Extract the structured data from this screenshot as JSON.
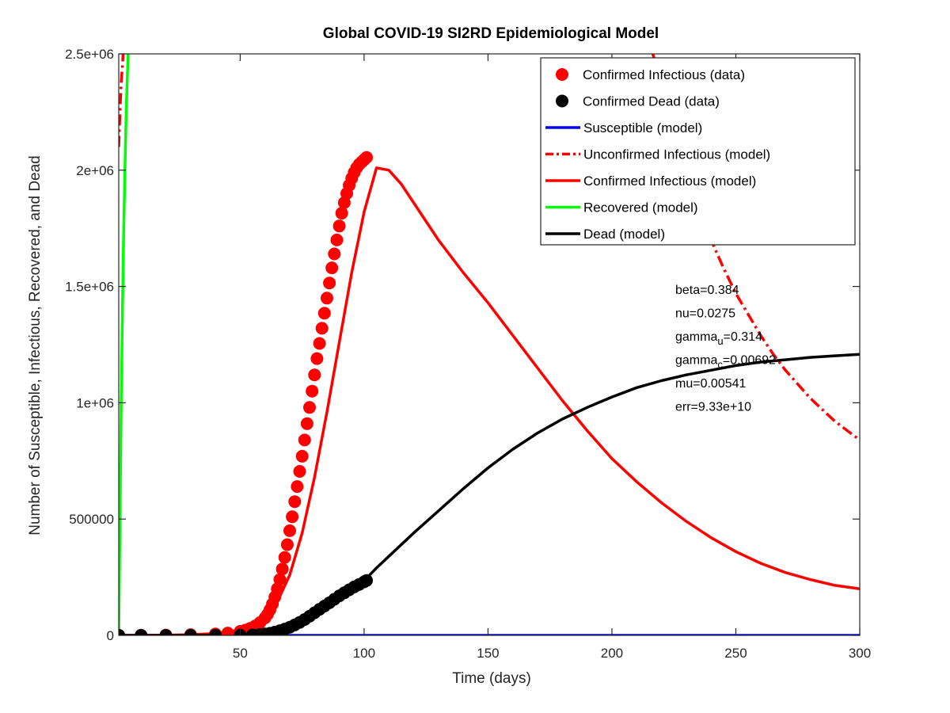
{
  "chart_data": {
    "type": "line",
    "title": "Global COVID-19 SI2RD Epidemiological Model",
    "xlabel": "Time (days)",
    "ylabel": "Number of Susceptible, Infectious, Recovered, and Dead",
    "xlim": [
      1,
      300
    ],
    "ylim": [
      0,
      2500000
    ],
    "x_ticks": [
      50,
      100,
      150,
      200,
      250,
      300
    ],
    "x_tick_labels": [
      "50",
      "100",
      "150",
      "200",
      "250",
      "300"
    ],
    "y_ticks": [
      0,
      500000,
      1000000,
      1500000,
      2000000,
      2500000
    ],
    "y_tick_labels": [
      "0",
      "500000",
      "1e+06",
      "1.5e+06",
      "2e+06",
      "2.5e+06"
    ],
    "grid": false,
    "legend_position": "top-right",
    "colors": {
      "red": "#ff0000",
      "black": "#000000",
      "blue": "#0000ff",
      "green": "#00ff00"
    },
    "legend": [
      {
        "label": "Confirmed Infectious (data)",
        "color": "#ff0000",
        "style": "marker"
      },
      {
        "label": "Confirmed Dead (data)",
        "color": "#000000",
        "style": "marker"
      },
      {
        "label": "Susceptible (model)",
        "color": "#0000ff",
        "style": "solid"
      },
      {
        "label": "Unconfirmed Infectious (model)",
        "color": "#ff0000",
        "style": "dashdot"
      },
      {
        "label": "Confirmed Infectious (model)",
        "color": "#ff0000",
        "style": "solid"
      },
      {
        "label": "Recovered (model)",
        "color": "#00ff00",
        "style": "solid"
      },
      {
        "label": "Dead (model)",
        "color": "#000000",
        "style": "solid"
      }
    ],
    "series": [
      {
        "name": "Confirmed Infectious (data)",
        "kind": "marker",
        "color": "#ff0000",
        "x": [
          1,
          10,
          20,
          30,
          40,
          45,
          50,
          52,
          54,
          56,
          58,
          60,
          61,
          62,
          63,
          64,
          65,
          66,
          67,
          68,
          69,
          70,
          71,
          72,
          73,
          74,
          75,
          76,
          77,
          78,
          79,
          80,
          81,
          82,
          83,
          84,
          85,
          86,
          87,
          88,
          89,
          90,
          91,
          92,
          93,
          94,
          95,
          96,
          97,
          98,
          99,
          100,
          101
        ],
        "y": [
          600,
          800,
          1500,
          3000,
          6000,
          10000,
          17000,
          22000,
          30000,
          40000,
          55000,
          75000,
          90000,
          110000,
          135000,
          165000,
          200000,
          240000,
          285000,
          335000,
          390000,
          450000,
          510000,
          575000,
          640000,
          705000,
          770000,
          840000,
          910000,
          980000,
          1050000,
          1120000,
          1190000,
          1255000,
          1320000,
          1385000,
          1450000,
          1515000,
          1580000,
          1640000,
          1700000,
          1760000,
          1815000,
          1860000,
          1900000,
          1935000,
          1965000,
          1990000,
          2010000,
          2025000,
          2035000,
          2045000,
          2055000
        ]
      },
      {
        "name": "Confirmed Dead (data)",
        "kind": "marker",
        "color": "#000000",
        "x": [
          1,
          10,
          20,
          30,
          40,
          50,
          55,
          58,
          60,
          62,
          64,
          66,
          68,
          70,
          72,
          74,
          76,
          78,
          80,
          82,
          84,
          86,
          88,
          90,
          92,
          94,
          96,
          98,
          100,
          101
        ],
        "y": [
          0,
          0,
          0,
          100,
          200,
          1000,
          2000,
          4000,
          6000,
          9000,
          14000,
          20000,
          27000,
          35000,
          45000,
          56000,
          68000,
          82000,
          97000,
          112000,
          126000,
          140000,
          155000,
          170000,
          183000,
          196000,
          208000,
          219000,
          230000,
          236000
        ]
      },
      {
        "name": "Susceptible (model)",
        "kind": "line",
        "style": "solid",
        "color": "#0000ff",
        "x": [
          1,
          300
        ],
        "y": [
          0,
          0
        ]
      },
      {
        "name": "Unconfirmed Infectious (model)",
        "kind": "line",
        "style": "dashdot",
        "color": "#ff0000",
        "x": [
          1,
          1.5,
          2,
          2.5,
          3,
          215,
          220,
          225,
          230,
          235,
          240,
          245,
          250,
          255,
          260,
          265,
          270,
          275,
          280,
          285,
          290,
          295,
          300
        ],
        "y": [
          2100000,
          2250000,
          2380000,
          2450000,
          2550000,
          2550000,
          2380000,
          2180000,
          2000000,
          1840000,
          1700000,
          1580000,
          1470000,
          1380000,
          1290000,
          1210000,
          1140000,
          1080000,
          1020000,
          970000,
          920000,
          880000,
          840000
        ]
      },
      {
        "name": "Confirmed Infectious (model)",
        "kind": "line",
        "style": "solid",
        "color": "#ff0000",
        "x": [
          1,
          20,
          30,
          40,
          45,
          50,
          55,
          60,
          65,
          70,
          75,
          80,
          85,
          90,
          95,
          100,
          105,
          110,
          115,
          120,
          130,
          140,
          150,
          160,
          170,
          180,
          190,
          200,
          210,
          220,
          230,
          240,
          250,
          260,
          270,
          280,
          290,
          300
        ],
        "y": [
          0,
          1000,
          3000,
          8000,
          14000,
          25000,
          45000,
          80000,
          145000,
          260000,
          440000,
          680000,
          960000,
          1260000,
          1560000,
          1820000,
          2010000,
          2000000,
          1940000,
          1860000,
          1700000,
          1560000,
          1430000,
          1290000,
          1150000,
          1010000,
          880000,
          760000,
          660000,
          570000,
          490000,
          420000,
          360000,
          310000,
          270000,
          240000,
          215000,
          200000
        ]
      },
      {
        "name": "Recovered (model)",
        "kind": "line",
        "style": "solid",
        "color": "#00ff00",
        "x": [
          1,
          1.5,
          2,
          2.5,
          3,
          3.5,
          4,
          4.5,
          5
        ],
        "y": [
          0,
          500000,
          1000000,
          1400000,
          1750000,
          2000000,
          2250000,
          2420000,
          2550000
        ]
      },
      {
        "name": "Dead (model)",
        "kind": "line",
        "style": "solid",
        "color": "#000000",
        "x": [
          1,
          20,
          40,
          50,
          55,
          60,
          65,
          70,
          75,
          80,
          85,
          90,
          95,
          100,
          105,
          110,
          120,
          130,
          140,
          150,
          160,
          170,
          180,
          190,
          200,
          210,
          220,
          230,
          240,
          250,
          260,
          270,
          280,
          290,
          300
        ],
        "y": [
          0,
          0,
          0,
          500,
          1500,
          4000,
          13000,
          30000,
          55000,
          90000,
          125000,
          160000,
          195000,
          235000,
          290000,
          340000,
          440000,
          535000,
          630000,
          720000,
          800000,
          870000,
          930000,
          980000,
          1025000,
          1065000,
          1095000,
          1120000,
          1140000,
          1160000,
          1175000,
          1185000,
          1195000,
          1202000,
          1208000
        ]
      }
    ],
    "annotations": [
      {
        "parts": [
          {
            "text": "beta=0.384"
          }
        ]
      },
      {
        "parts": [
          {
            "text": "nu=0.0275"
          }
        ]
      },
      {
        "parts": [
          {
            "text": "gamma"
          },
          {
            "text": "u",
            "sub": true
          },
          {
            "text": "=0.314"
          }
        ]
      },
      {
        "parts": [
          {
            "text": "gamma"
          },
          {
            "text": "c",
            "sub": true
          },
          {
            "text": "=0.00692"
          }
        ]
      },
      {
        "parts": [
          {
            "text": "mu=0.00541"
          }
        ]
      },
      {
        "parts": [
          {
            "text": "err=9.33e+10"
          }
        ]
      }
    ]
  }
}
